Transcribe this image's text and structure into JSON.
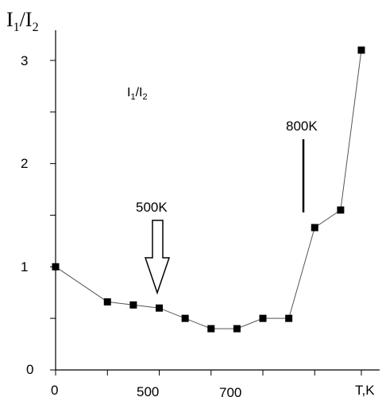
{
  "chart_data": {
    "type": "scatter",
    "title": "",
    "xlabel": "T,K",
    "ylabel": "I1/I2",
    "inner_label": "I1/I2",
    "x_ticks": [
      "0",
      "500",
      "700"
    ],
    "y_ticks": [
      "0",
      "1",
      "2",
      "3"
    ],
    "xlim": [
      300,
      890
    ],
    "ylim": [
      0,
      3.2
    ],
    "grid": false,
    "marker": "square",
    "series": [
      {
        "name": "",
        "x": [
          300,
          400,
          450,
          500,
          550,
          600,
          650,
          700,
          750,
          800,
          850
        ],
        "y": [
          1.0,
          0.66,
          0.63,
          0.6,
          0.5,
          0.4,
          0.4,
          0.5,
          0.5,
          1.38,
          1.55
        ],
        "extra": {
          "x": 890,
          "y": 3.1
        }
      }
    ],
    "annotations": [
      {
        "text": "500K",
        "marks": 500,
        "style": "open-arrow-down"
      },
      {
        "text": "800K",
        "marks": 800,
        "style": "vertical-line"
      }
    ]
  }
}
